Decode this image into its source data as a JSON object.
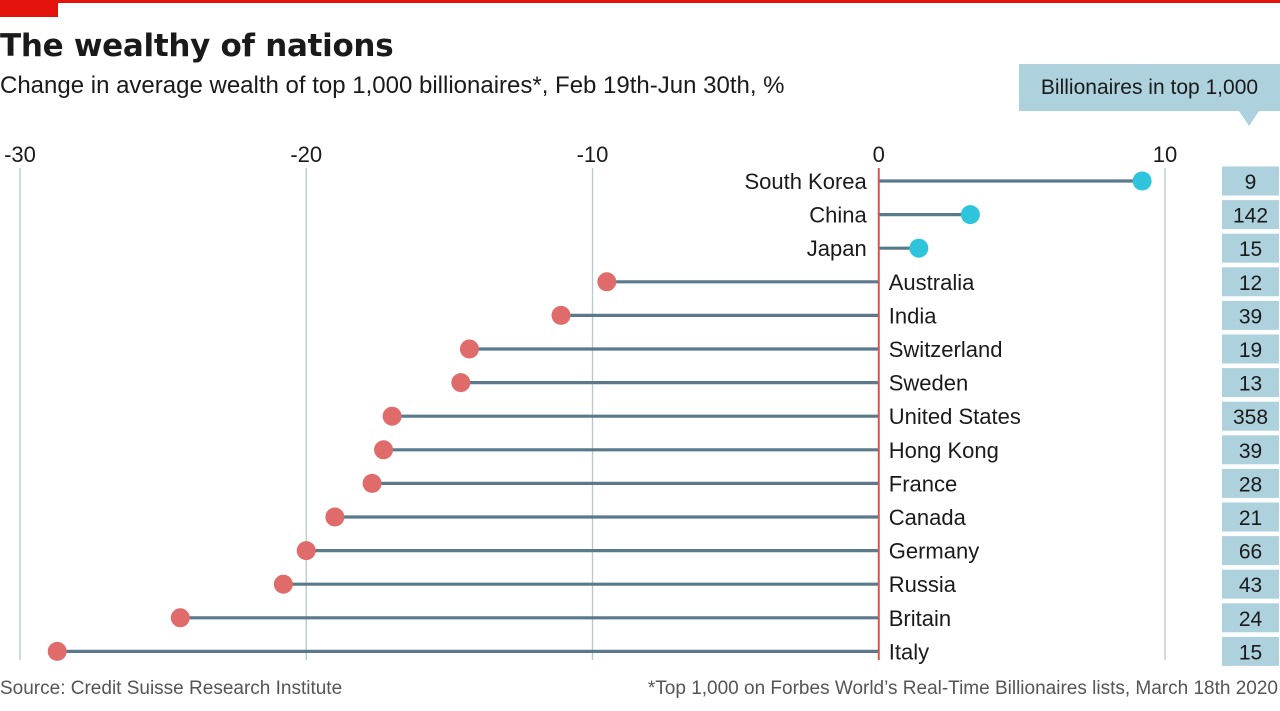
{
  "header": {
    "title": "The wealthy of nations",
    "subtitle": "Change in average wealth of top 1,000 billionaires*, Feb 19th-Jun 30th, %"
  },
  "callout": {
    "label": "Billionaires in top 1,000"
  },
  "footer": {
    "source": "Source: Credit Suisse Research Institute",
    "note": "*Top 1,000 on Forbes World’s Real-Time Billionaires lists, March 18th 2020"
  },
  "colors": {
    "brand_red": "#e3120b",
    "positive": "#2ec4dc",
    "negative": "#e06b6b",
    "stem": "#5a7a8c",
    "zero_line": "#d9534f",
    "grid": "#b7c6cf",
    "count_box": "#add2de"
  },
  "chart_data": {
    "type": "lollipop",
    "title": "The wealthy of nations",
    "subtitle": "Change in average wealth of top 1,000 billionaires*, Feb 19th-Jun 30th, %",
    "xlim": [
      -30,
      10
    ],
    "xticks": [
      -30,
      -20,
      -10,
      0,
      10
    ],
    "xtick_labels": [
      "-30",
      "-20",
      "-10",
      "0",
      "10"
    ],
    "grid": true,
    "categories": [
      "South Korea",
      "China",
      "Japan",
      "Australia",
      "India",
      "Switzerland",
      "Sweden",
      "United States",
      "Hong Kong",
      "France",
      "Canada",
      "Germany",
      "Russia",
      "Britain",
      "Italy"
    ],
    "values": [
      9.2,
      3.2,
      1.4,
      -9.5,
      -11.1,
      -14.3,
      -14.6,
      -17.0,
      -17.3,
      -17.7,
      -19.0,
      -20.0,
      -20.8,
      -24.4,
      -28.7
    ],
    "counts_label": "Billionaires in top 1,000",
    "counts": [
      "9",
      "142",
      "15",
      "12",
      "39",
      "19",
      "13",
      "358",
      "39",
      "28",
      "21",
      "66",
      "43",
      "24",
      "15"
    ]
  }
}
